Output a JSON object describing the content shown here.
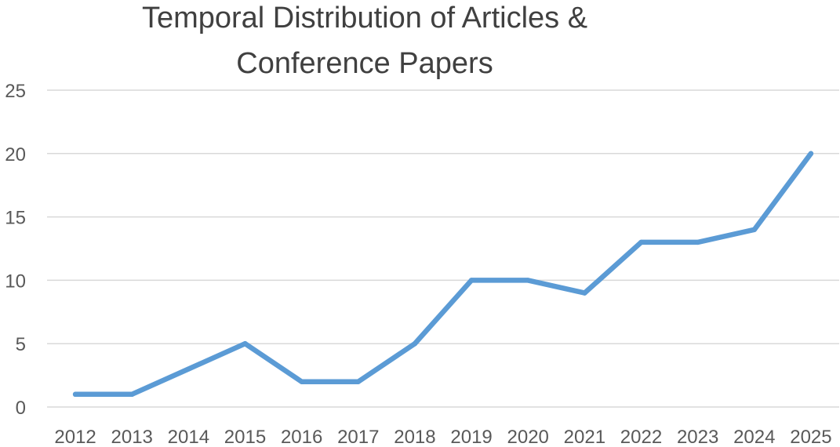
{
  "chart_data": {
    "type": "line",
    "title_lines": [
      "Temporal Distribution of Articles &",
      "Conference Papers"
    ],
    "categories": [
      "2012",
      "2013",
      "2014",
      "2015",
      "2016",
      "2017",
      "2018",
      "2019",
      "2020",
      "2021",
      "2022",
      "2023",
      "2024",
      "2025"
    ],
    "series": [
      {
        "values": [
          1,
          1,
          3,
          5,
          2,
          2,
          5,
          10,
          10,
          9,
          13,
          13,
          14,
          20
        ]
      }
    ],
    "ylim": [
      0,
      25
    ],
    "yticks": [
      0,
      5,
      10,
      15,
      20,
      25
    ],
    "grid": true,
    "legend": "none",
    "colors": {
      "line": "#5b9bd5",
      "grid": "#d9d9d9",
      "text": "#595959",
      "title": "#404040"
    }
  }
}
